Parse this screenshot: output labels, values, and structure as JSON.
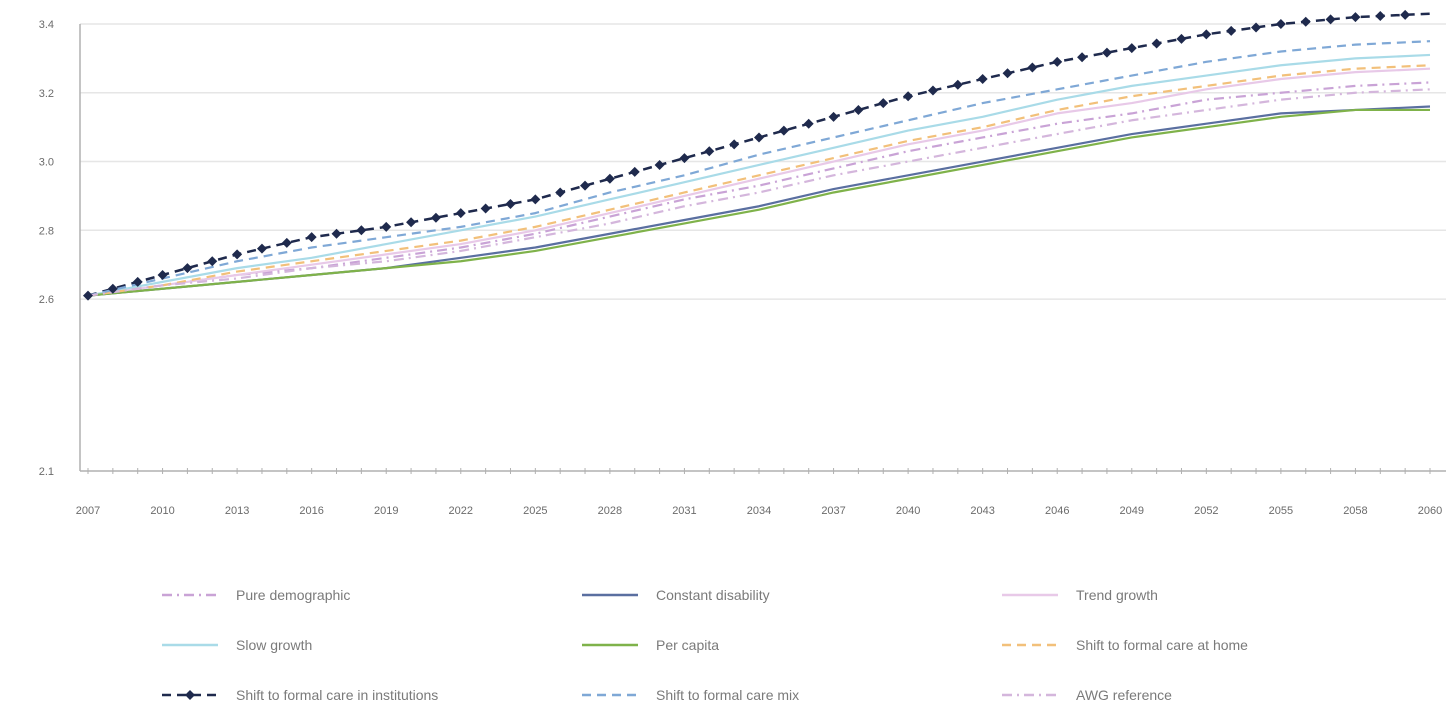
{
  "chart_data": {
    "type": "line",
    "x": [
      "2007",
      "2010",
      "2013",
      "2016",
      "2019",
      "2022",
      "2025",
      "2028",
      "2031",
      "2034",
      "2037",
      "2040",
      "2043",
      "2046",
      "2049",
      "2052",
      "2055",
      "2058",
      "2060"
    ],
    "y_ticks": [
      "2.1",
      "2.6",
      "2.8",
      "3.0",
      "3.2",
      "3.4"
    ],
    "ylim": [
      2.1,
      3.4
    ],
    "grid": true,
    "legend_position": "bottom",
    "series": [
      {
        "name": "Pure demographic",
        "color": "#c9a3d6",
        "style": "dashdot",
        "marker": "none",
        "values": [
          2.61,
          2.64,
          2.67,
          2.69,
          2.72,
          2.75,
          2.79,
          2.84,
          2.89,
          2.93,
          2.98,
          3.03,
          3.07,
          3.11,
          3.14,
          3.18,
          3.2,
          3.22,
          3.23
        ]
      },
      {
        "name": "Constant disability",
        "color": "#5a6fa0",
        "style": "solid",
        "marker": "none",
        "values": [
          2.61,
          2.63,
          2.65,
          2.67,
          2.69,
          2.72,
          2.75,
          2.79,
          2.83,
          2.87,
          2.92,
          2.96,
          3.0,
          3.04,
          3.08,
          3.11,
          3.14,
          3.15,
          3.16
        ]
      },
      {
        "name": "Trend growth",
        "color": "#e8c9e8",
        "style": "solid",
        "marker": "none",
        "values": [
          2.61,
          2.64,
          2.67,
          2.7,
          2.73,
          2.76,
          2.8,
          2.85,
          2.9,
          2.95,
          3.0,
          3.05,
          3.09,
          3.14,
          3.17,
          3.21,
          3.24,
          3.26,
          3.27
        ]
      },
      {
        "name": "Slow growth",
        "color": "#a9dbe8",
        "style": "solid",
        "marker": "none",
        "values": [
          2.61,
          2.65,
          2.69,
          2.72,
          2.76,
          2.8,
          2.84,
          2.89,
          2.94,
          2.99,
          3.04,
          3.09,
          3.13,
          3.18,
          3.22,
          3.25,
          3.28,
          3.3,
          3.31
        ]
      },
      {
        "name": "Per capita",
        "color": "#7fb24a",
        "style": "solid",
        "marker": "none",
        "values": [
          2.61,
          2.63,
          2.65,
          2.67,
          2.69,
          2.71,
          2.74,
          2.78,
          2.82,
          2.86,
          2.91,
          2.95,
          2.99,
          3.03,
          3.07,
          3.1,
          3.13,
          3.15,
          3.15
        ]
      },
      {
        "name": "Shift to formal care at home",
        "color": "#f2c07a",
        "style": "dashed",
        "marker": "none",
        "values": [
          2.61,
          2.64,
          2.68,
          2.71,
          2.74,
          2.77,
          2.81,
          2.86,
          2.91,
          2.96,
          3.01,
          3.06,
          3.1,
          3.15,
          3.19,
          3.22,
          3.25,
          3.27,
          3.28
        ]
      },
      {
        "name": "Shift to formal care in institutions",
        "color": "#1f2a4d",
        "style": "dashed",
        "marker": "diamond",
        "values": [
          2.61,
          2.67,
          2.73,
          2.78,
          2.81,
          2.85,
          2.89,
          2.95,
          3.01,
          3.07,
          3.13,
          3.19,
          3.24,
          3.29,
          3.33,
          3.37,
          3.4,
          3.42,
          3.43
        ]
      },
      {
        "name": "Shift to formal care mix",
        "color": "#7fa8d6",
        "style": "dashed",
        "marker": "none",
        "values": [
          2.61,
          2.66,
          2.71,
          2.75,
          2.78,
          2.81,
          2.85,
          2.91,
          2.96,
          3.02,
          3.07,
          3.12,
          3.17,
          3.21,
          3.25,
          3.29,
          3.32,
          3.34,
          3.35
        ]
      },
      {
        "name": "AWG reference",
        "color": "#d4b6dc",
        "style": "dashdot",
        "marker": "none",
        "values": [
          2.61,
          2.64,
          2.66,
          2.69,
          2.71,
          2.74,
          2.78,
          2.82,
          2.87,
          2.91,
          2.96,
          3.0,
          3.04,
          3.08,
          3.12,
          3.15,
          3.18,
          3.2,
          3.21
        ]
      }
    ]
  }
}
